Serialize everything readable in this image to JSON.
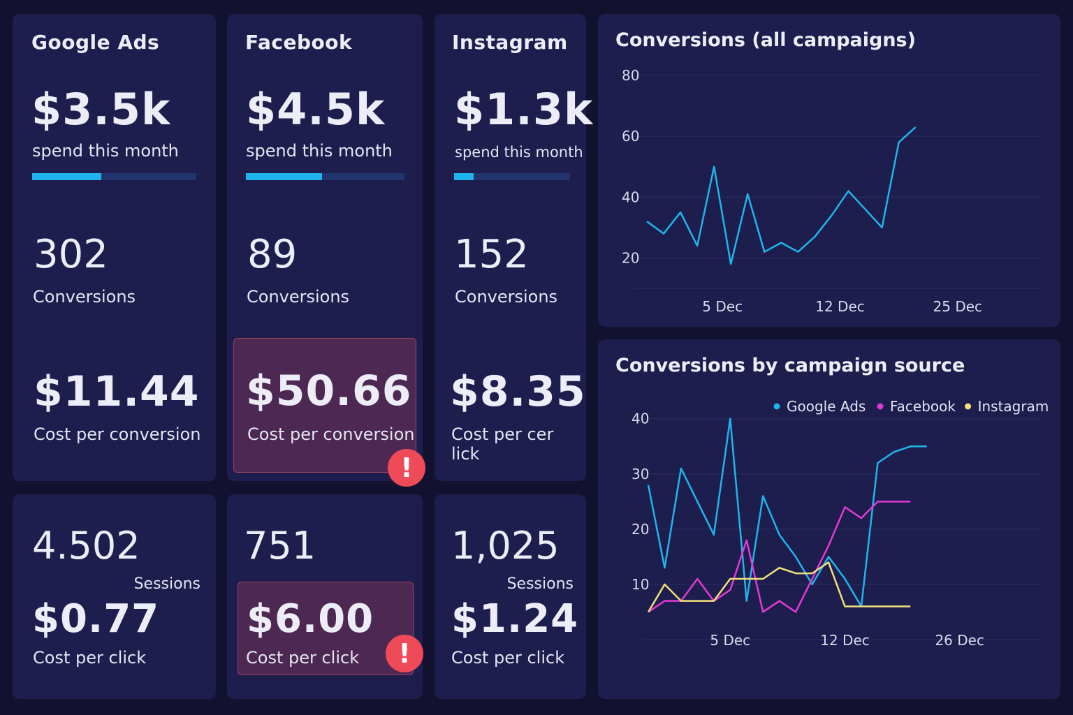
{
  "cards": {
    "google": {
      "name": "Google Ads",
      "spend": "$3.5k",
      "spend_label": "spend this month",
      "spend_progress": 0.42,
      "conversions": "302",
      "conversions_label": "Conversions",
      "cpa": "$11.44",
      "cpa_label": "Cost per conversion",
      "sessions": "4.502",
      "sessions_label": "Sessions",
      "cpc": "$0.77",
      "cpc_label": "Cost per click"
    },
    "facebook": {
      "name": "Facebook",
      "spend": "$4.5k",
      "spend_label": "spend this month",
      "spend_progress": 0.48,
      "conversions": "89",
      "conversions_label": "Conversions",
      "cpa": "$50.66",
      "cpa_label": "Cost per conversion",
      "sessions": "751",
      "cpc": "$6.00",
      "cpc_label": "Cost per click",
      "alert_icon": "!"
    },
    "instagram": {
      "name": "Instagram",
      "spend": "$1.3k",
      "spend_label": "spend this month",
      "spend_progress": 0.17,
      "conversions": "152",
      "conversions_label": "Conversions",
      "cpa": "$8.35",
      "cpa_label": "Cost per cer lick",
      "sessions": "1,025",
      "sessions_label": "Sessions",
      "cpc": "$1.24",
      "cpc_label": "Cost per click"
    }
  },
  "colors": {
    "google": "#1fb5ec",
    "facebook": "#e13ad6",
    "instagram": "#f2e07a",
    "alert": "#ee4a57"
  },
  "chart_data": [
    {
      "type": "line",
      "title": "Conversions (all campaigns)",
      "ylim": [
        10,
        80
      ],
      "yticks": [
        20,
        40,
        60,
        80
      ],
      "xlim": [
        0,
        24
      ],
      "xticks": [
        {
          "x": 5,
          "label": "5 Dec"
        },
        {
          "x": 12,
          "label": "12 Dec"
        },
        {
          "x": 19,
          "label": "25 Dec"
        }
      ],
      "grid": true,
      "series": [
        {
          "x": [
            0.5,
            1.5,
            2.5,
            3.5,
            4.5,
            5.5,
            6.5,
            7.5,
            8.5,
            9.5,
            10.5,
            11.5,
            12.5,
            13.5,
            14.5,
            15.5,
            16.5
          ],
          "values": [
            32,
            28,
            35,
            24,
            50,
            18,
            41,
            22,
            25,
            22,
            27,
            34,
            42,
            36,
            30,
            58,
            63
          ]
        }
      ]
    },
    {
      "type": "line",
      "title": "Conversions by campaign source",
      "ylim": [
        0,
        43
      ],
      "yticks": [
        10,
        20,
        30,
        40
      ],
      "xlim": [
        0,
        24
      ],
      "xticks": [
        {
          "x": 5,
          "label": "5 Dec"
        },
        {
          "x": 12,
          "label": "12 Dec"
        },
        {
          "x": 19,
          "label": "26 Dec"
        }
      ],
      "grid": true,
      "legend": "top-right",
      "series": [
        {
          "name": "Google Ads",
          "x": [
            0,
            1,
            2,
            3,
            4,
            5,
            6,
            7,
            8,
            9,
            10,
            11,
            12,
            13,
            14,
            15,
            16,
            17
          ],
          "values": [
            28,
            13,
            31,
            25,
            19,
            40,
            7,
            26,
            19,
            15,
            10,
            15,
            11,
            6,
            32,
            34,
            35,
            35
          ]
        },
        {
          "name": "Facebook",
          "x": [
            0,
            1,
            2,
            3,
            4,
            5,
            6,
            7,
            8,
            9,
            10,
            11,
            12,
            13,
            14,
            15,
            16
          ],
          "values": [
            5,
            7,
            7,
            11,
            7,
            9,
            18,
            5,
            7,
            5,
            11,
            17,
            24,
            22,
            25,
            25,
            25
          ]
        },
        {
          "name": "Instagram",
          "x": [
            0,
            1,
            2,
            3,
            4,
            5,
            6,
            7,
            8,
            9,
            10,
            11,
            12,
            13,
            14,
            15,
            16
          ],
          "values": [
            5,
            10,
            7,
            7,
            7,
            11,
            11,
            11,
            13,
            12,
            12,
            14,
            6,
            6,
            6,
            6,
            6
          ]
        }
      ]
    }
  ]
}
